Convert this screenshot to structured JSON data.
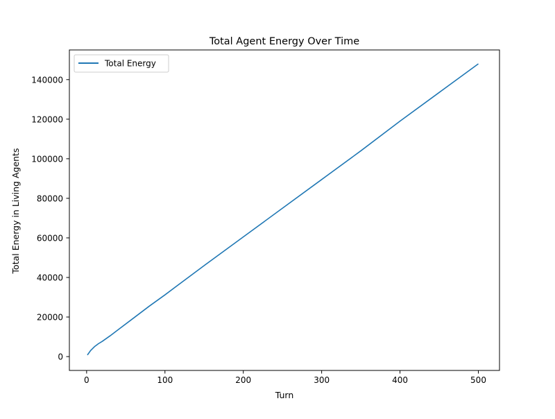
{
  "chart_data": {
    "type": "line",
    "title": "Total Agent Energy Over Time",
    "xlabel": "Turn",
    "ylabel": "Total Energy in Living Agents",
    "xlim": [
      -22,
      527
    ],
    "ylim": [
      -7000,
      155000
    ],
    "xticks": [
      0,
      100,
      200,
      300,
      400,
      500
    ],
    "yticks": [
      0,
      20000,
      40000,
      60000,
      80000,
      100000,
      120000,
      140000
    ],
    "grid": false,
    "legend_position": "top-left",
    "series": [
      {
        "name": "Total Energy",
        "color": "#1f77b4",
        "x": [
          1,
          5,
          10,
          15,
          20,
          30,
          40,
          60,
          80,
          100,
          150,
          200,
          250,
          300,
          350,
          400,
          450,
          500
        ],
        "y": [
          800,
          3000,
          5000,
          6500,
          7700,
          10500,
          13500,
          19500,
          25500,
          31200,
          46000,
          60500,
          75000,
          89500,
          104000,
          119000,
          133500,
          148000
        ]
      }
    ]
  }
}
